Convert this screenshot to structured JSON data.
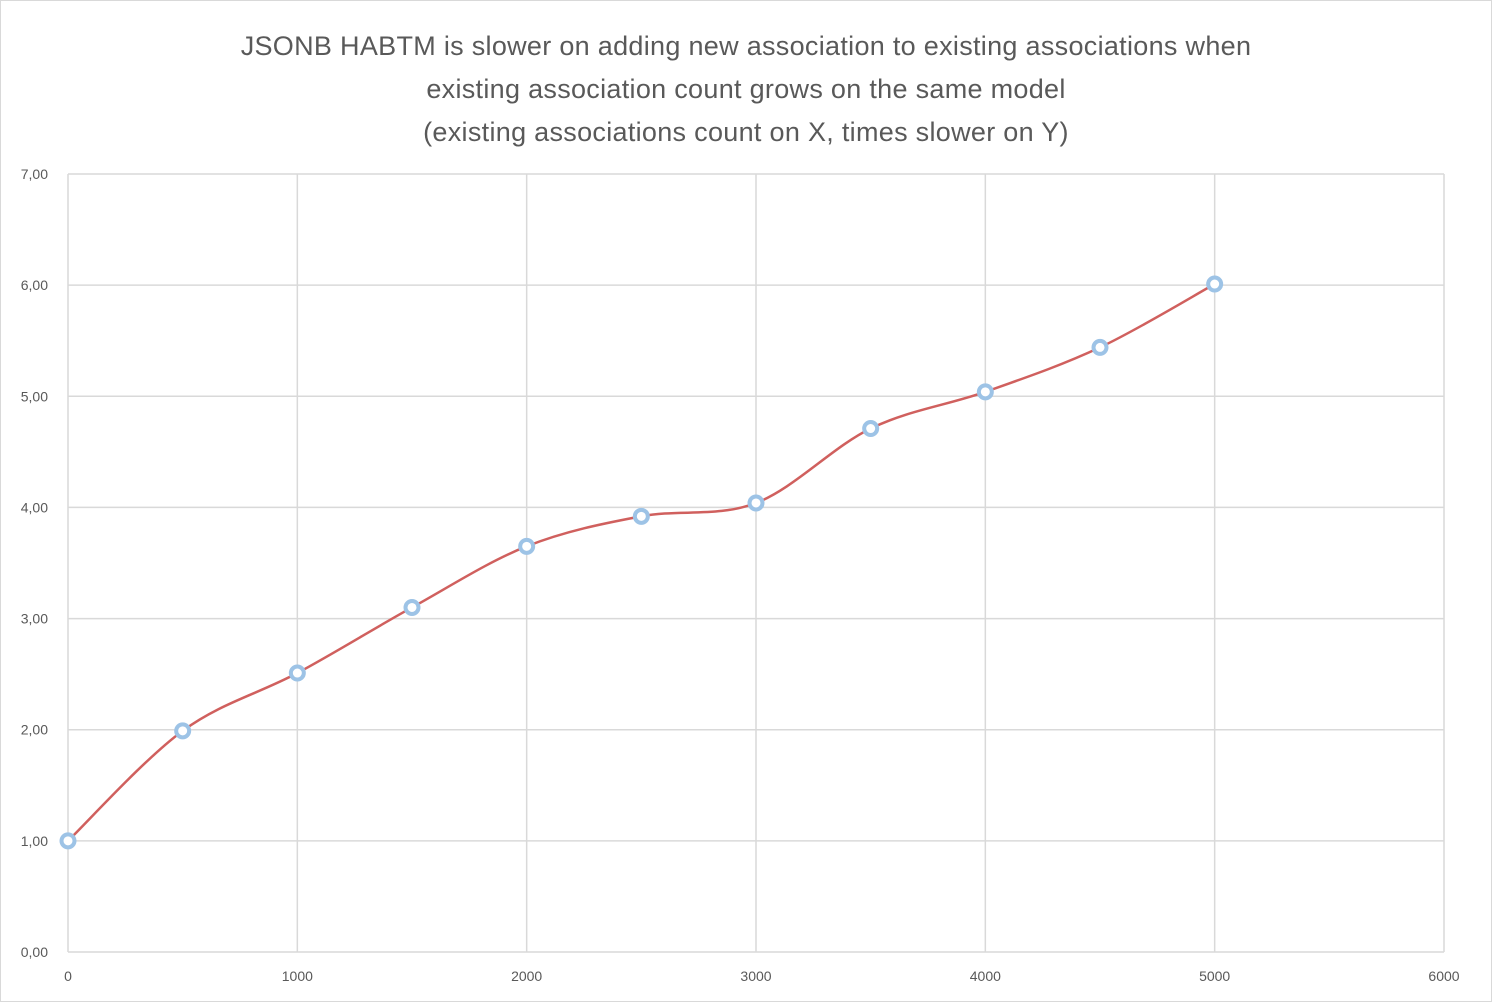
{
  "chart_data": {
    "type": "scatter",
    "title_lines": [
      "JSONB HABTM is slower on adding new association to existing associations when",
      "existing association count grows on the same model",
      "(existing associations count on X, times slower on Y)"
    ],
    "x": [
      0,
      500,
      1000,
      1500,
      2000,
      2500,
      3000,
      3500,
      4000,
      4500,
      5000
    ],
    "y": [
      1.0,
      1.99,
      2.51,
      3.1,
      3.65,
      3.92,
      4.04,
      4.71,
      5.04,
      5.44,
      6.01
    ],
    "xlim": [
      0,
      6000
    ],
    "ylim": [
      0,
      7
    ],
    "x_ticks": [
      "0",
      "1000",
      "2000",
      "3000",
      "4000",
      "5000",
      "6000"
    ],
    "y_ticks": [
      "0,00",
      "1,00",
      "2,00",
      "3,00",
      "4,00",
      "5,00",
      "6,00",
      "7,00"
    ],
    "smooth_line": true,
    "grid": true,
    "colors": {
      "line": "#d0605e",
      "marker": "#9dc3e6",
      "grid": "#d9d9d9"
    }
  }
}
